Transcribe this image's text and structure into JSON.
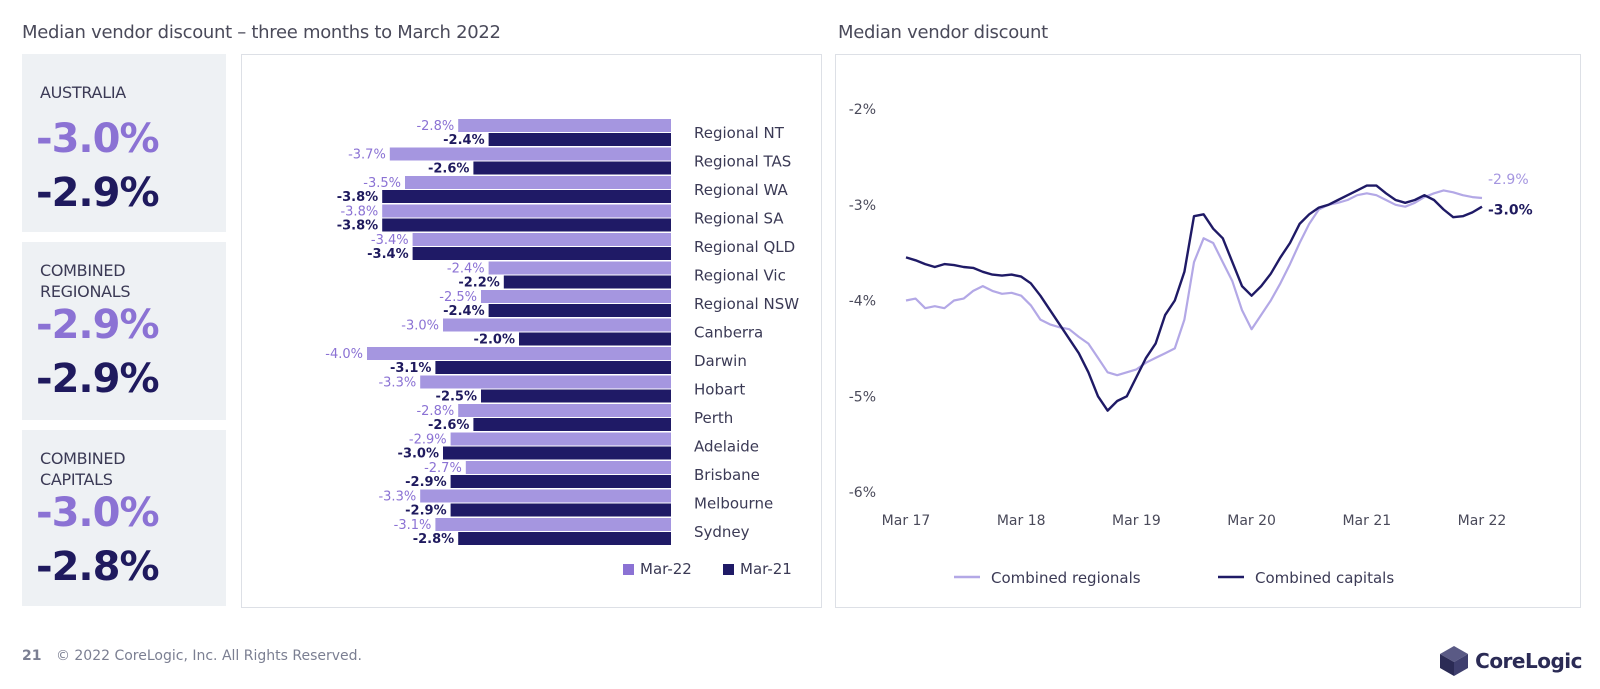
{
  "left_title": "Median vendor discount – three months to March 2022",
  "right_title": "Median vendor discount",
  "stat_cards": [
    {
      "label": "AUSTRALIA",
      "current": "-3.0%",
      "previous": "-2.9%"
    },
    {
      "label": "COMBINED\nREGIONALS",
      "current": "-2.9%",
      "previous": "-2.9%"
    },
    {
      "label": "COMBINED\nCAPITALS",
      "current": "-3.0%",
      "previous": "-2.8%"
    }
  ],
  "colors": {
    "current": "#a596e0",
    "previous": "#1f1a66",
    "current_text": "#8b72d4",
    "previous_text": "#1f1a5e"
  },
  "chart_data": [
    {
      "type": "bar",
      "orientation": "horizontal",
      "categories": [
        "Regional NT",
        "Regional TAS",
        "Regional WA",
        "Regional SA",
        "Regional QLD",
        "Regional Vic",
        "Regional NSW",
        "Canberra",
        "Darwin",
        "Hobart",
        "Perth",
        "Adelaide",
        "Brisbane",
        "Melbourne",
        "Sydney"
      ],
      "series": [
        {
          "name": "Mar-22",
          "values": [
            -2.8,
            -3.7,
            -3.5,
            -3.8,
            -3.4,
            -2.4,
            -2.5,
            -3.0,
            -4.0,
            -3.3,
            -2.8,
            -2.9,
            -2.7,
            -3.3,
            -3.1
          ],
          "labels": [
            "-2.8%",
            "-3.7%",
            "-3.5%",
            "-3.8%",
            "-3.4%",
            "-2.4%",
            "-2.5%",
            "-3.0%",
            "-4.0%",
            "-3.3%",
            "-2.8%",
            "-2.9%",
            "-2.7%",
            "-3.3%",
            "-3.1%"
          ]
        },
        {
          "name": "Mar-21",
          "values": [
            -2.4,
            -2.6,
            -3.8,
            -3.8,
            -3.4,
            -2.2,
            -2.4,
            -2.0,
            -3.1,
            -2.5,
            -2.6,
            -3.0,
            -2.9,
            -2.9,
            -2.8
          ],
          "labels": [
            "-2.4%",
            "-2.6%",
            "-3.8%",
            "-3.8%",
            "-3.4%",
            "-2.2%",
            "-2.4%",
            "-2.0%",
            "-3.1%",
            "-2.5%",
            "-2.6%",
            "-3.0%",
            "-2.9%",
            "-2.9%",
            "-2.8%"
          ]
        }
      ],
      "xlim": [
        -4.5,
        0
      ],
      "legend": "bottom-right",
      "grid": false
    },
    {
      "type": "line",
      "x_ticks": [
        "Mar 17",
        "Mar 18",
        "Mar 19",
        "Mar 20",
        "Mar 21",
        "Mar 22"
      ],
      "y_ticks": [
        "-2%",
        "-3%",
        "-4%",
        "-5%",
        "-6%"
      ],
      "ylim": [
        -6,
        -2
      ],
      "x": [
        "Mar 17",
        "Apr 17",
        "May 17",
        "Jun 17",
        "Jul 17",
        "Aug 17",
        "Sep 17",
        "Oct 17",
        "Nov 17",
        "Dec 17",
        "Jan 18",
        "Feb 18",
        "Mar 18",
        "Apr 18",
        "May 18",
        "Jun 18",
        "Jul 18",
        "Aug 18",
        "Sep 18",
        "Oct 18",
        "Nov 18",
        "Dec 18",
        "Jan 19",
        "Feb 19",
        "Mar 19",
        "Apr 19",
        "May 19",
        "Jun 19",
        "Jul 19",
        "Aug 19",
        "Sep 19",
        "Oct 19",
        "Nov 19",
        "Dec 19",
        "Jan 20",
        "Feb 20",
        "Mar 20",
        "Apr 20",
        "May 20",
        "Jun 20",
        "Jul 20",
        "Aug 20",
        "Sep 20",
        "Oct 20",
        "Nov 20",
        "Dec 20",
        "Jan 21",
        "Feb 21",
        "Mar 21",
        "Apr 21",
        "May 21",
        "Jun 21",
        "Jul 21",
        "Aug 21",
        "Sep 21",
        "Oct 21",
        "Nov 21",
        "Dec 21",
        "Jan 22",
        "Feb 22",
        "Mar 22"
      ],
      "series": [
        {
          "name": "Combined regionals",
          "end_label": "-2.9%",
          "values": [
            -4.0,
            -3.98,
            -4.08,
            -4.06,
            -4.08,
            -4.0,
            -3.98,
            -3.9,
            -3.85,
            -3.9,
            -3.93,
            -3.92,
            -3.95,
            -4.05,
            -4.2,
            -4.25,
            -4.28,
            -4.3,
            -4.38,
            -4.45,
            -4.6,
            -4.75,
            -4.78,
            -4.75,
            -4.72,
            -4.65,
            -4.6,
            -4.55,
            -4.5,
            -4.2,
            -3.6,
            -3.35,
            -3.4,
            -3.6,
            -3.8,
            -4.1,
            -4.3,
            -4.15,
            -4.0,
            -3.82,
            -3.62,
            -3.4,
            -3.2,
            -3.05,
            -3.0,
            -2.98,
            -2.95,
            -2.9,
            -2.88,
            -2.9,
            -2.95,
            -3.0,
            -3.02,
            -2.98,
            -2.92,
            -2.88,
            -2.85,
            -2.87,
            -2.9,
            -2.92,
            -2.93
          ]
        },
        {
          "name": "Combined capitals",
          "end_label": "-3.0%",
          "values": [
            -3.55,
            -3.58,
            -3.62,
            -3.65,
            -3.62,
            -3.63,
            -3.65,
            -3.66,
            -3.7,
            -3.73,
            -3.74,
            -3.73,
            -3.75,
            -3.82,
            -3.95,
            -4.1,
            -4.25,
            -4.4,
            -4.55,
            -4.75,
            -5.0,
            -5.15,
            -5.05,
            -5.0,
            -4.8,
            -4.6,
            -4.45,
            -4.15,
            -4.0,
            -3.7,
            -3.12,
            -3.1,
            -3.25,
            -3.35,
            -3.6,
            -3.85,
            -3.95,
            -3.85,
            -3.72,
            -3.55,
            -3.4,
            -3.2,
            -3.1,
            -3.03,
            -3.0,
            -2.95,
            -2.9,
            -2.85,
            -2.8,
            -2.8,
            -2.88,
            -2.95,
            -2.98,
            -2.95,
            -2.9,
            -2.95,
            -3.05,
            -3.13,
            -3.12,
            -3.08,
            -3.02
          ]
        }
      ],
      "legend": "bottom",
      "grid": false
    }
  ],
  "footer": {
    "page": "21",
    "copyright": "© 2022 CoreLogic, Inc. All Rights Reserved."
  },
  "logo": {
    "text": "CoreLogic",
    "icon": "corelogic-cube-icon"
  }
}
